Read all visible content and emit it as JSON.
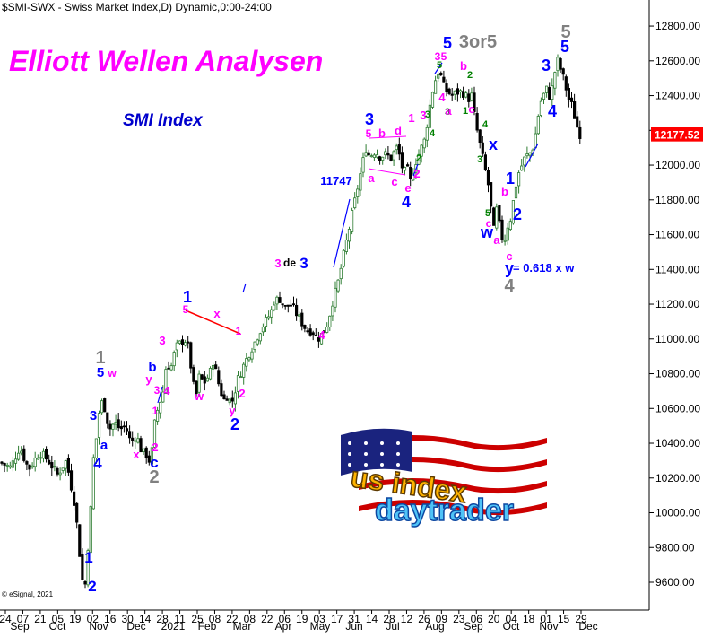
{
  "header": "$SMI-SWX - Swiss Market Index,D) Dynamic,0:00-24:00",
  "title": "Elliott Wellen Analysen",
  "subtitle": "SMI Index",
  "copyright": "© eSignal, 2021",
  "ratio_note": "= 0.618 x w",
  "colors": {
    "up_candle": "#2e7d32",
    "down_candle": "#000000",
    "title": "#ff00ff",
    "wave_blue": "#0000ff",
    "wave_pink": "#ff00ff",
    "wave_green": "#008000",
    "wave_gray": "#808080",
    "price_tag": "#ff0000"
  },
  "logo": {
    "line1": "us index",
    "line2": "daytrader"
  },
  "chart_data": {
    "type": "candlestick",
    "symbol": "$SMI-SWX",
    "ylim": [
      9440,
      12950
    ],
    "yticks": [
      9600,
      9800,
      10000,
      10200,
      10400,
      10600,
      10800,
      11000,
      11200,
      11400,
      11600,
      11800,
      12000,
      12200,
      12400,
      12600,
      12800
    ],
    "ytick_labels": [
      "9600.00",
      "9800.00",
      "10000.00",
      "10200.00",
      "10400.00",
      "10600.00",
      "10800.00",
      "11000.00",
      "11200.00",
      "11400.00",
      "11600.00",
      "11800.00",
      "12000.00",
      "12200.00",
      "12400.00",
      "12600.00",
      "12800.00"
    ],
    "last_price": "12177.52",
    "last_price_value": 12177.52,
    "day_labels": [
      "24",
      "07",
      "21",
      "05",
      "19",
      "02",
      "16",
      "30",
      "14",
      "28",
      "11",
      "25",
      "08",
      "22",
      "08",
      "22",
      "06",
      "19",
      "03",
      "17",
      "31",
      "14",
      "28",
      "12",
      "26",
      "09",
      "23",
      "06",
      "20",
      "04",
      "18",
      "01",
      "15",
      "29"
    ],
    "month_labels": [
      "Sep",
      "Oct",
      "Nov",
      "Dec",
      "2021",
      "Feb",
      "Mar",
      "Apr",
      "May",
      "Jun",
      "Jul",
      "Aug",
      "Sep",
      "Oct",
      "Nov",
      "Dec"
    ],
    "close_path": [
      [
        0,
        10290
      ],
      [
        12,
        10260
      ],
      [
        22,
        10380
      ],
      [
        32,
        10250
      ],
      [
        44,
        10350
      ],
      [
        54,
        10300
      ],
      [
        64,
        10220
      ],
      [
        74,
        10300
      ],
      [
        84,
        10030
      ],
      [
        90,
        9700
      ],
      [
        94,
        9520
      ],
      [
        98,
        9800
      ],
      [
        101,
        10000
      ],
      [
        104,
        10300
      ],
      [
        108,
        10450
      ],
      [
        111,
        10600
      ],
      [
        115,
        10650
      ],
      [
        118,
        10570
      ],
      [
        122,
        10480
      ],
      [
        128,
        10520
      ],
      [
        134,
        10480
      ],
      [
        140,
        10500
      ],
      [
        146,
        10400
      ],
      [
        152,
        10450
      ],
      [
        158,
        10350
      ],
      [
        164,
        10330
      ],
      [
        168,
        10280
      ],
      [
        172,
        10500
      ],
      [
        176,
        10600
      ],
      [
        182,
        10700
      ],
      [
        186,
        10880
      ],
      [
        190,
        10820
      ],
      [
        196,
        10950
      ],
      [
        202,
        10980
      ],
      [
        206,
        11000
      ],
      [
        210,
        10950
      ],
      [
        214,
        10800
      ],
      [
        218,
        10650
      ],
      [
        222,
        10780
      ],
      [
        228,
        10750
      ],
      [
        234,
        10800
      ],
      [
        238,
        10880
      ],
      [
        242,
        10780
      ],
      [
        246,
        10700
      ],
      [
        250,
        10650
      ],
      [
        254,
        10680
      ],
      [
        258,
        10620
      ],
      [
        262,
        10700
      ],
      [
        266,
        10780
      ],
      [
        272,
        10850
      ],
      [
        278,
        10920
      ],
      [
        284,
        10980
      ],
      [
        290,
        11050
      ],
      [
        296,
        11100
      ],
      [
        302,
        11150
      ],
      [
        306,
        11220
      ],
      [
        312,
        11230
      ],
      [
        318,
        11180
      ],
      [
        324,
        11200
      ],
      [
        330,
        11150
      ],
      [
        336,
        11100
      ],
      [
        342,
        11050
      ],
      [
        348,
        11050
      ],
      [
        354,
        11000
      ],
      [
        358,
        11020
      ],
      [
        362,
        11050
      ],
      [
        366,
        11100
      ],
      [
        370,
        11200
      ],
      [
        376,
        11300
      ],
      [
        382,
        11450
      ],
      [
        388,
        11600
      ],
      [
        394,
        11750
      ],
      [
        400,
        11900
      ],
      [
        404,
        12000
      ],
      [
        408,
        12100
      ],
      [
        412,
        12050
      ],
      [
        418,
        12080
      ],
      [
        424,
        12050
      ],
      [
        430,
        12060
      ],
      [
        436,
        12040
      ],
      [
        442,
        12100
      ],
      [
        446,
        12050
      ],
      [
        450,
        11950
      ],
      [
        454,
        11980
      ],
      [
        458,
        11900
      ],
      [
        462,
        12000
      ],
      [
        466,
        12050
      ],
      [
        470,
        12100
      ],
      [
        474,
        12150
      ],
      [
        478,
        12300
      ],
      [
        482,
        12420
      ],
      [
        486,
        12500
      ],
      [
        490,
        12550
      ],
      [
        494,
        12460
      ],
      [
        498,
        12430
      ],
      [
        504,
        12400
      ],
      [
        510,
        12420
      ],
      [
        516,
        12420
      ],
      [
        522,
        12380
      ],
      [
        526,
        12400
      ],
      [
        530,
        12250
      ],
      [
        534,
        12150
      ],
      [
        538,
        12050
      ],
      [
        542,
        11950
      ],
      [
        546,
        11850
      ],
      [
        550,
        11600
      ],
      [
        554,
        11750
      ],
      [
        558,
        11620
      ],
      [
        562,
        11550
      ],
      [
        566,
        11650
      ],
      [
        570,
        11700
      ],
      [
        574,
        11850
      ],
      [
        578,
        11950
      ],
      [
        582,
        12000
      ],
      [
        586,
        12050
      ],
      [
        590,
        12060
      ],
      [
        594,
        12100
      ],
      [
        598,
        12200
      ],
      [
        602,
        12350
      ],
      [
        606,
        12400
      ],
      [
        610,
        12440
      ],
      [
        614,
        12380
      ],
      [
        618,
        12520
      ],
      [
        622,
        12600
      ],
      [
        626,
        12540
      ],
      [
        630,
        12470
      ],
      [
        634,
        12380
      ],
      [
        638,
        12340
      ],
      [
        642,
        12250
      ],
      [
        646,
        12180
      ],
      [
        649,
        12177.52
      ]
    ],
    "wave_labels": [
      {
        "t": "1",
        "x": 112,
        "y": 405,
        "c": "wave_gray",
        "s": 20
      },
      {
        "t": "5",
        "x": 112,
        "y": 420,
        "c": "wave_blue",
        "s": 15
      },
      {
        "t": "w",
        "x": 125,
        "y": 420,
        "c": "wave_pink",
        "s": 12
      },
      {
        "t": "3",
        "x": 104,
        "y": 468,
        "c": "wave_blue",
        "s": 15
      },
      {
        "t": "a",
        "x": 116,
        "y": 501,
        "c": "wave_blue",
        "s": 15
      },
      {
        "t": "4",
        "x": 109,
        "y": 522,
        "c": "wave_blue",
        "s": 17
      },
      {
        "t": "1",
        "x": 99,
        "y": 627,
        "c": "wave_blue",
        "s": 17
      },
      {
        "t": "2",
        "x": 103,
        "y": 659,
        "c": "wave_blue",
        "s": 17
      },
      {
        "t": "x",
        "x": 152,
        "y": 511,
        "c": "wave_pink",
        "s": 13
      },
      {
        "t": "b",
        "x": 170,
        "y": 414,
        "c": "wave_blue",
        "s": 15
      },
      {
        "t": "y",
        "x": 166,
        "y": 427,
        "c": "wave_pink",
        "s": 13
      },
      {
        "t": "4",
        "x": 186,
        "y": 440,
        "c": "wave_pink",
        "s": 13
      },
      {
        "t": "3",
        "x": 175,
        "y": 439,
        "c": "wave_pink",
        "s": 12
      },
      {
        "t": "1",
        "x": 173,
        "y": 462,
        "c": "wave_pink",
        "s": 12
      },
      {
        "t": "2",
        "x": 173,
        "y": 503,
        "c": "wave_pink",
        "s": 13
      },
      {
        "t": "c",
        "x": 172,
        "y": 521,
        "c": "wave_blue",
        "s": 17
      },
      {
        "t": "2",
        "x": 172,
        "y": 538,
        "c": "wave_gray",
        "s": 20
      },
      {
        "t": "1",
        "x": 209,
        "y": 337,
        "c": "wave_blue",
        "s": 18
      },
      {
        "t": "5",
        "x": 207,
        "y": 349,
        "c": "wave_pink",
        "s": 12
      },
      {
        "t": "3",
        "x": 181,
        "y": 384,
        "c": "wave_pink",
        "s": 13
      },
      {
        "t": "w",
        "x": 222,
        "y": 446,
        "c": "wave_pink",
        "s": 13
      },
      {
        "t": "x",
        "x": 242,
        "y": 354,
        "c": "wave_pink",
        "s": 13
      },
      {
        "t": "y",
        "x": 259,
        "y": 462,
        "c": "wave_pink",
        "s": 13
      },
      {
        "t": "2",
        "x": 262,
        "y": 479,
        "c": "wave_blue",
        "s": 18
      },
      {
        "t": "1",
        "x": 266,
        "y": 373,
        "c": "wave_pink",
        "s": 12
      },
      {
        "t": "2",
        "x": 270,
        "y": 443,
        "c": "wave_pink",
        "s": 13
      },
      {
        "t": "3",
        "x": 310,
        "y": 298,
        "c": "wave_pink",
        "s": 13
      },
      {
        "t": "de",
        "x": 323,
        "y": 297,
        "c": "down_candle",
        "s": 12
      },
      {
        "t": "3",
        "x": 339,
        "y": 299,
        "c": "wave_blue",
        "s": 17
      },
      {
        "t": "4",
        "x": 359,
        "y": 378,
        "c": "wave_pink",
        "s": 13
      },
      {
        "t": "11747",
        "x": 375,
        "y": 206,
        "c": "wave_blue",
        "s": 13
      },
      {
        "t": "3",
        "x": 412,
        "y": 139,
        "c": "wave_blue",
        "s": 18
      },
      {
        "t": "5",
        "x": 411,
        "y": 153,
        "c": "wave_pink",
        "s": 12
      },
      {
        "t": "b",
        "x": 426,
        "y": 153,
        "c": "wave_pink",
        "s": 13
      },
      {
        "t": "d",
        "x": 444,
        "y": 150,
        "c": "wave_pink",
        "s": 13
      },
      {
        "t": "1",
        "x": 459,
        "y": 136,
        "c": "wave_pink",
        "s": 13
      },
      {
        "t": "a",
        "x": 414,
        "y": 203,
        "c": "wave_pink",
        "s": 13
      },
      {
        "t": "c",
        "x": 440,
        "y": 207,
        "c": "wave_pink",
        "s": 13
      },
      {
        "t": "e",
        "x": 455,
        "y": 214,
        "c": "wave_pink",
        "s": 13
      },
      {
        "t": "4",
        "x": 453,
        "y": 231,
        "c": "wave_blue",
        "s": 18
      },
      {
        "t": "3",
        "x": 472,
        "y": 133,
        "c": "wave_pink",
        "s": 13
      },
      {
        "t": "4",
        "x": 482,
        "y": 152,
        "c": "wave_green",
        "s": 11
      },
      {
        "t": "3",
        "x": 477,
        "y": 131,
        "c": "wave_green",
        "s": 11
      },
      {
        "t": "2",
        "x": 467,
        "y": 180,
        "c": "wave_green",
        "s": 11
      },
      {
        "t": "2",
        "x": 465,
        "y": 198,
        "c": "wave_pink",
        "s": 13
      },
      {
        "t": "5",
        "x": 499,
        "y": 54,
        "c": "wave_blue",
        "s": 18
      },
      {
        "t": "3or5",
        "x": 533,
        "y": 53,
        "c": "wave_gray",
        "s": 20
      },
      {
        "t": "3",
        "x": 488,
        "y": 67,
        "c": "wave_pink",
        "s": 12
      },
      {
        "t": "5",
        "x": 495,
        "y": 67,
        "c": "wave_pink",
        "s": 12
      },
      {
        "t": "5",
        "x": 490,
        "y": 76,
        "c": "wave_green",
        "s": 11
      },
      {
        "t": "4",
        "x": 493,
        "y": 113,
        "c": "wave_pink",
        "s": 13
      },
      {
        "t": "3",
        "x": 499,
        "y": 128,
        "c": "wave_green",
        "s": 11
      },
      {
        "t": "a",
        "x": 500,
        "y": 128,
        "c": "wave_pink",
        "s": 13
      },
      {
        "t": "b",
        "x": 517,
        "y": 78,
        "c": "wave_pink",
        "s": 13
      },
      {
        "t": "2",
        "x": 524,
        "y": 87,
        "c": "wave_green",
        "s": 11
      },
      {
        "t": "c",
        "x": 526,
        "y": 126,
        "c": "wave_pink",
        "s": 13
      },
      {
        "t": "1",
        "x": 519,
        "y": 127,
        "c": "wave_green",
        "s": 11
      },
      {
        "t": "4",
        "x": 541,
        "y": 142,
        "c": "wave_green",
        "s": 11
      },
      {
        "t": "x",
        "x": 550,
        "y": 167,
        "c": "wave_blue",
        "s": 18
      },
      {
        "t": "3",
        "x": 535,
        "y": 181,
        "c": "wave_green",
        "s": 11
      },
      {
        "t": "5",
        "x": 544,
        "y": 241,
        "c": "wave_green",
        "s": 11
      },
      {
        "t": "c",
        "x": 545,
        "y": 253,
        "c": "wave_pink",
        "s": 12
      },
      {
        "t": "w",
        "x": 543,
        "y": 265,
        "c": "wave_blue",
        "s": 18
      },
      {
        "t": "a",
        "x": 554,
        "y": 272,
        "c": "wave_pink",
        "s": 13
      },
      {
        "t": "1",
        "x": 569,
        "y": 205,
        "c": "wave_blue",
        "s": 18
      },
      {
        "t": "b",
        "x": 563,
        "y": 218,
        "c": "wave_pink",
        "s": 13
      },
      {
        "t": "2",
        "x": 577,
        "y": 245,
        "c": "wave_blue",
        "s": 18
      },
      {
        "t": "c",
        "x": 568,
        "y": 290,
        "c": "wave_pink",
        "s": 13
      },
      {
        "t": "y",
        "x": 568,
        "y": 305,
        "c": "wave_blue",
        "s": 18
      },
      {
        "t": "4",
        "x": 568,
        "y": 325,
        "c": "wave_gray",
        "s": 20
      },
      {
        "t": "3",
        "x": 609,
        "y": 79,
        "c": "wave_blue",
        "s": 18
      },
      {
        "t": "4",
        "x": 616,
        "y": 130,
        "c": "wave_blue",
        "s": 18
      },
      {
        "t": "5",
        "x": 631,
        "y": 42,
        "c": "wave_gray",
        "s": 20
      },
      {
        "t": "5",
        "x": 630,
        "y": 58,
        "c": "wave_blue",
        "s": 18
      }
    ]
  }
}
